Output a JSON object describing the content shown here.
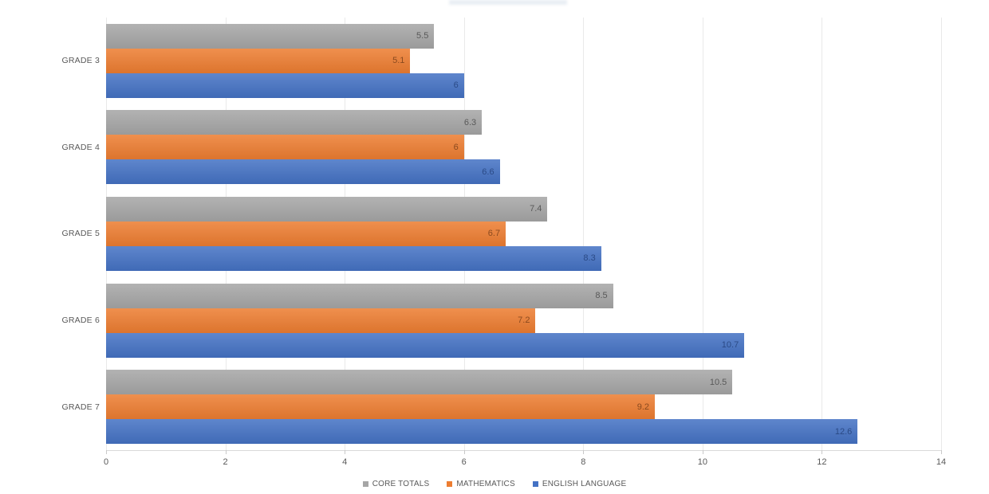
{
  "chart_data": {
    "type": "bar",
    "orientation": "horizontal",
    "title": "",
    "categories": [
      "GRADE 3",
      "GRADE 4",
      "GRADE 5",
      "GRADE 6",
      "GRADE 7"
    ],
    "series": [
      {
        "name": "CORE TOTALS",
        "color": "#A6A6A6",
        "label_color": "#595959",
        "values": [
          5.5,
          6.3,
          7.4,
          8.5,
          10.5
        ]
      },
      {
        "name": "MATHEMATICS",
        "color": "#ED7D31",
        "label_color": "#8A4A1F",
        "values": [
          5.1,
          6,
          6.7,
          7.2,
          9.2
        ]
      },
      {
        "name": "ENGLISH LANGUAGE",
        "color": "#4472C4",
        "label_color": "#2B4A86",
        "values": [
          6,
          6.6,
          8.3,
          10.7,
          12.6
        ]
      }
    ],
    "xlabel": "",
    "ylabel": "",
    "xlim": [
      0,
      14
    ],
    "xticks": [
      0,
      2,
      4,
      6,
      8,
      10,
      12,
      14
    ],
    "grid": true,
    "data_labels": "inside-end",
    "legend_position": "bottom"
  },
  "axis_style": {
    "tick_text_color": "#595959",
    "gridline_color": "#e9e9e9",
    "axis_line_color": "#d9d9d9"
  }
}
